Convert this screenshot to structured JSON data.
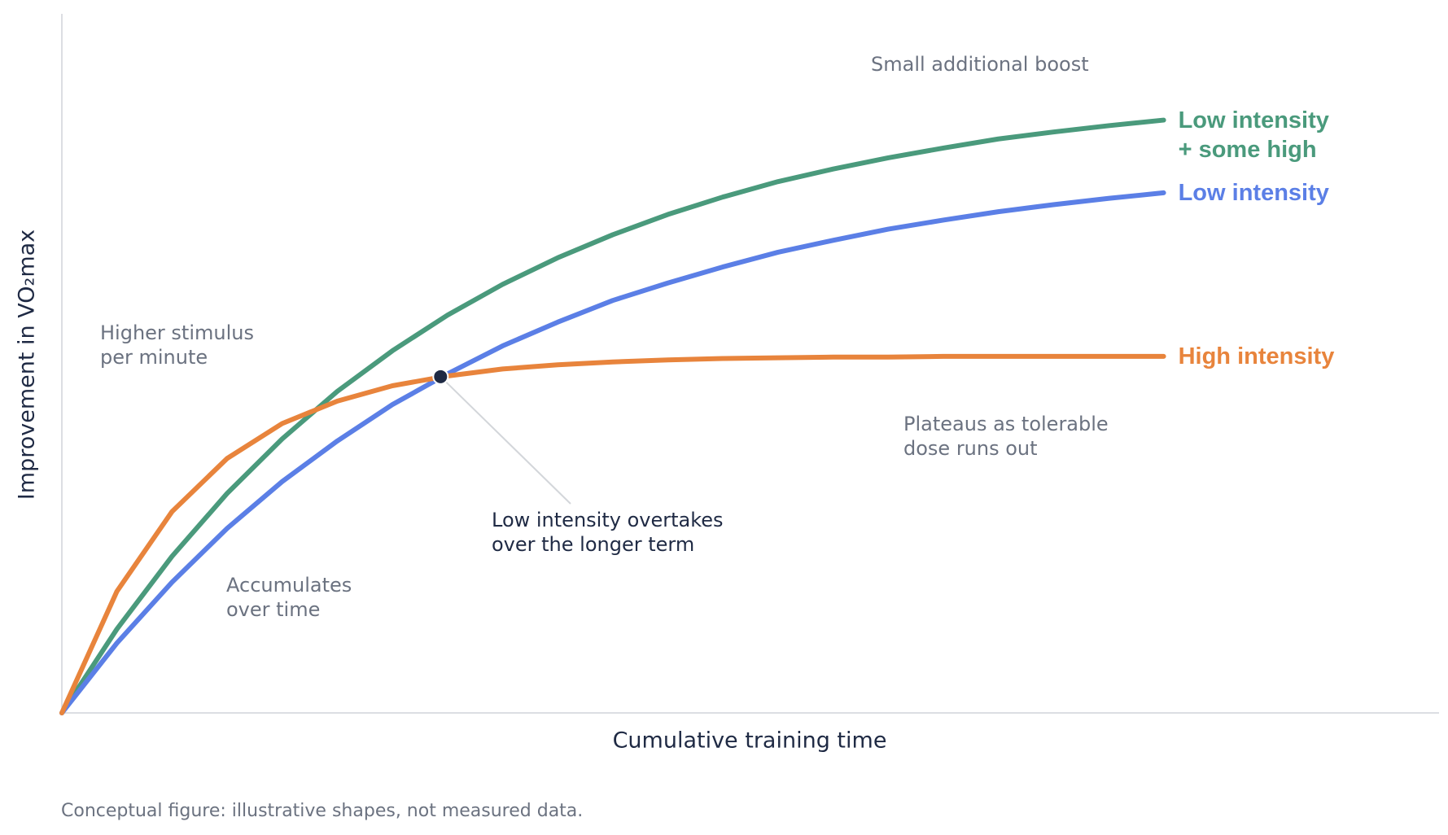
{
  "chart_data": {
    "type": "line",
    "y_label": "Improvement in VO₂max",
    "x_label": "Cumulative training time",
    "footnote": "Conceptual figure: illustrative shapes, not measured data.",
    "x": [
      0,
      4,
      8,
      12,
      16,
      20,
      24,
      28,
      32,
      36,
      40,
      44,
      48,
      52,
      56,
      60,
      64,
      68,
      72,
      76,
      80
    ],
    "xlim": [
      0,
      100
    ],
    "ylim": [
      0,
      100
    ],
    "series": [
      {
        "name": "Low intensity + some high",
        "color": "#4a9a7c",
        "values": [
          0,
          12.0,
          22.4,
          31.4,
          39.2,
          46.0,
          51.8,
          56.9,
          61.3,
          65.1,
          68.4,
          71.3,
          73.8,
          76.0,
          77.8,
          79.4,
          80.8,
          82.1,
          83.1,
          84.0,
          84.8
        ]
      },
      {
        "name": "Low intensity",
        "color": "#5b7fe6",
        "values": [
          0,
          10.0,
          18.7,
          26.4,
          33.1,
          38.9,
          44.1,
          48.5,
          52.5,
          55.9,
          59.0,
          61.5,
          63.8,
          65.9,
          67.6,
          69.2,
          70.5,
          71.7,
          72.7,
          73.6,
          74.4
        ]
      },
      {
        "name": "High intensity",
        "color": "#e8843c",
        "values": [
          0,
          17.4,
          28.8,
          36.4,
          41.4,
          44.6,
          46.8,
          48.2,
          49.2,
          49.8,
          50.2,
          50.5,
          50.7,
          50.8,
          50.9,
          50.9,
          51,
          51,
          51,
          51,
          51
        ]
      }
    ],
    "highlight": {
      "x": 27.5,
      "y": 48.1
    },
    "annotations": [
      {
        "lines": [
          "Small additional boost"
        ]
      },
      {
        "lines": [
          "Higher stimulus",
          "per minute"
        ]
      },
      {
        "lines": [
          "Plateaus as tolerable",
          "dose runs out"
        ]
      },
      {
        "lines": [
          "Low intensity overtakes",
          "over the longer term"
        ]
      },
      {
        "lines": [
          "Accumulates",
          "over time"
        ]
      }
    ]
  }
}
